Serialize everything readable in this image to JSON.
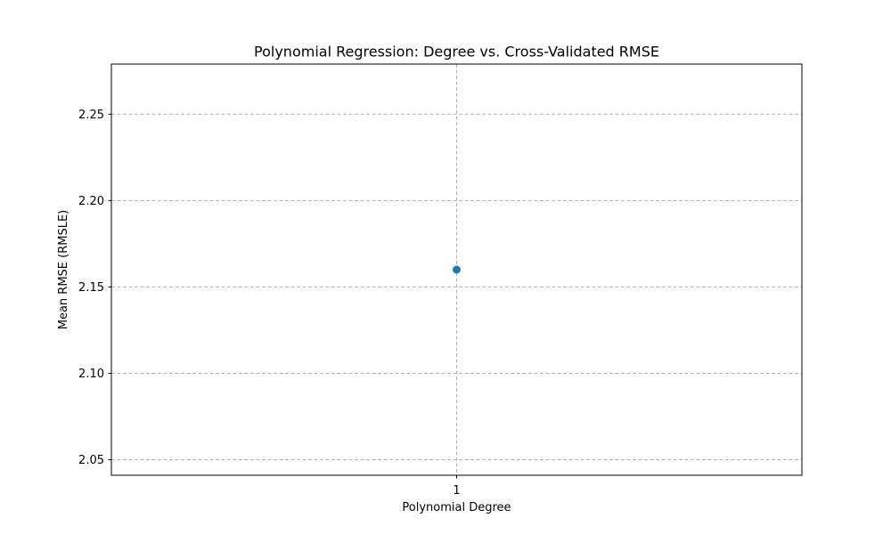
{
  "chart_data": {
    "type": "line",
    "title": "Polynomial Regression: Degree vs. Cross-Validated RMSE",
    "xlabel": "Polynomial Degree",
    "ylabel": "Mean RMSE (RMSLE)",
    "x": [
      1
    ],
    "x_tick_labels": [
      "1"
    ],
    "xlim": [
      0.945,
      1.055
    ],
    "ylim": [
      2.041,
      2.279
    ],
    "y_ticks": [
      2.05,
      2.1,
      2.15,
      2.2,
      2.25
    ],
    "y_tick_labels": [
      "2.05",
      "2.10",
      "2.15",
      "2.20",
      "2.25"
    ],
    "series": [
      {
        "values": [
          2.16
        ],
        "color": "#1f77b4",
        "marker": "circle"
      }
    ],
    "grid": true,
    "legend": "none"
  }
}
